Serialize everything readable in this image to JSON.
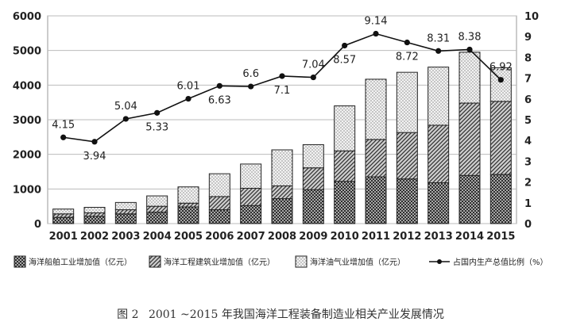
{
  "caption": {
    "figure_no": "图 2",
    "text": "2001 ~2015 年我国海洋工程装备制造业相关产业发展情况"
  },
  "chart_data": {
    "type": "bar",
    "stacked": true,
    "categories": [
      "2001",
      "2002",
      "2003",
      "2004",
      "2005",
      "2006",
      "2007",
      "2008",
      "2009",
      "2010",
      "2011",
      "2012",
      "2013",
      "2014",
      "2015"
    ],
    "series": [
      {
        "name": "海洋船舶工业增加值（亿元）",
        "axis": "left",
        "pattern": "crosshatch",
        "values": [
          180,
          210,
          280,
          330,
          480,
          400,
          520,
          720,
          980,
          1220,
          1350,
          1290,
          1180,
          1390,
          1420
        ]
      },
      {
        "name": "海洋工程建筑业增加值（亿元）",
        "axis": "left",
        "pattern": "diagonal",
        "values": [
          100,
          100,
          120,
          170,
          110,
          380,
          500,
          370,
          630,
          880,
          1080,
          1340,
          1660,
          2090,
          2110
        ]
      },
      {
        "name": "海洋油气业增加值（亿元）",
        "axis": "left",
        "pattern": "dots",
        "values": [
          140,
          160,
          210,
          300,
          470,
          660,
          700,
          1040,
          670,
          1300,
          1740,
          1740,
          1680,
          1470,
          970
        ]
      },
      {
        "name": "占国内生产总值比例（%）",
        "axis": "right",
        "type": "line",
        "values": [
          4.15,
          3.94,
          5.04,
          5.33,
          6.01,
          6.63,
          6.6,
          7.1,
          7.04,
          8.57,
          9.14,
          8.72,
          8.31,
          8.38,
          6.92
        ],
        "labels": [
          "4.15",
          "3.94",
          "5.04",
          "5.33",
          "6.01",
          "6.63",
          "6.6",
          "7.1",
          "7.04",
          "8.57",
          "9.14",
          "8.72",
          "8.31",
          "8.38",
          "6.92"
        ],
        "label_above": [
          true,
          false,
          true,
          false,
          true,
          false,
          true,
          false,
          true,
          false,
          true,
          false,
          true,
          true,
          true
        ]
      }
    ],
    "ylim": [
      0,
      6000
    ],
    "yticks": [
      0,
      1000,
      2000,
      3000,
      4000,
      5000,
      6000
    ],
    "y2lim": [
      0,
      10
    ],
    "y2ticks": [
      0,
      1,
      2,
      3,
      4,
      5,
      6,
      7,
      8,
      9,
      10
    ],
    "grid": "horizontal",
    "legend_position": "bottom"
  }
}
